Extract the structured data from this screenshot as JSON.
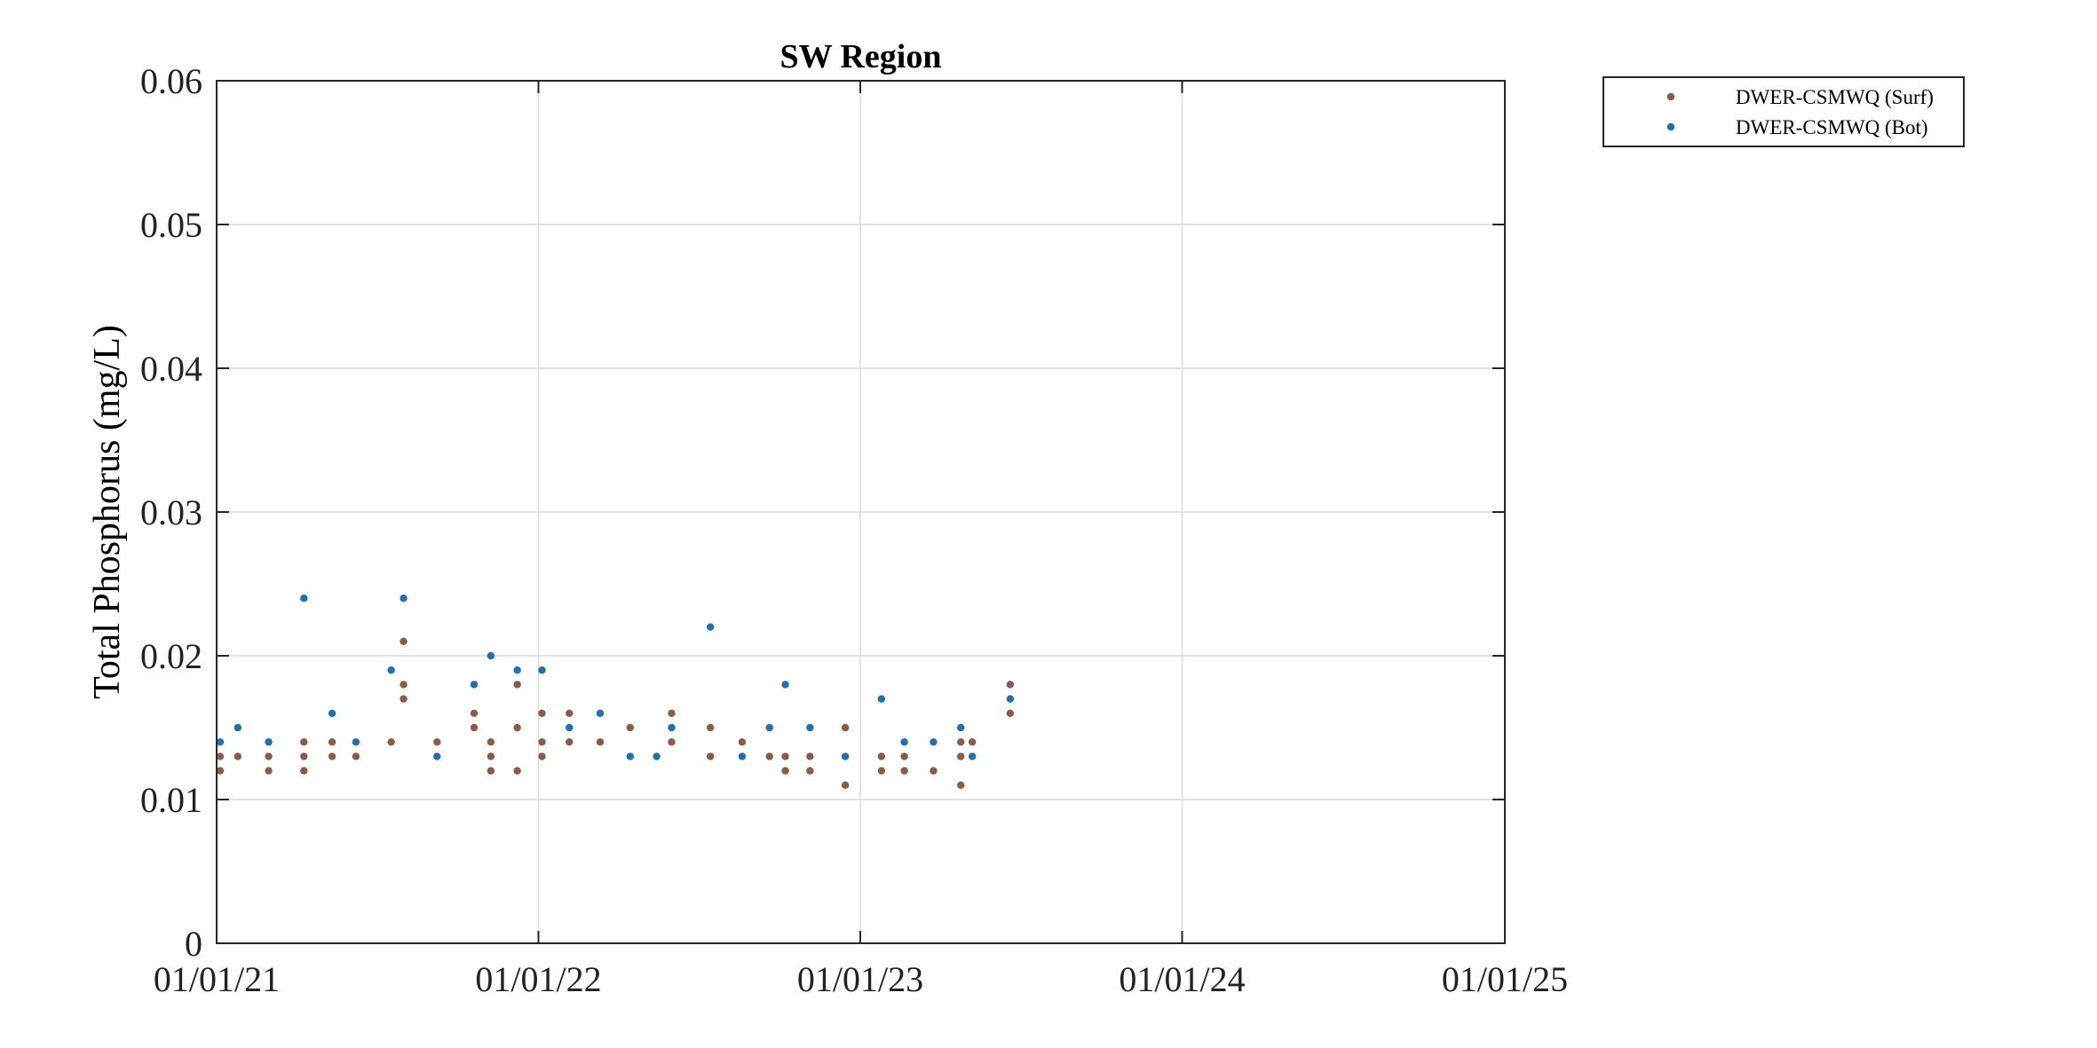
{
  "chart_data": {
    "type": "scatter",
    "title": "SW Region",
    "xlabel": "",
    "ylabel": "Total Phosphorus (mg/L)",
    "x_scale": "date",
    "xlim": [
      "2021-01-01",
      "2025-01-01"
    ],
    "ylim": [
      0,
      0.06
    ],
    "x_ticks": [
      "2021-01-01",
      "2022-01-01",
      "2023-01-01",
      "2024-01-01",
      "2025-01-01"
    ],
    "x_tick_labels": [
      "01/01/21",
      "01/01/22",
      "01/01/23",
      "01/01/24",
      "01/01/25"
    ],
    "y_ticks": [
      0,
      0.01,
      0.02,
      0.03,
      0.04,
      0.05,
      0.06
    ],
    "y_tick_labels": [
      "0",
      "0.01",
      "0.02",
      "0.03",
      "0.04",
      "0.05",
      "0.06"
    ],
    "grid": true,
    "legend_position": "outside top-right",
    "series": [
      {
        "name": "DWER-CSMWQ (Surf)",
        "color": "#8c5a46",
        "points": [
          [
            "2021-01-05",
            0.012
          ],
          [
            "2021-01-05",
            0.013
          ],
          [
            "2021-01-25",
            0.013
          ],
          [
            "2021-03-01",
            0.012
          ],
          [
            "2021-03-01",
            0.013
          ],
          [
            "2021-04-10",
            0.012
          ],
          [
            "2021-04-10",
            0.013
          ],
          [
            "2021-04-10",
            0.014
          ],
          [
            "2021-05-12",
            0.013
          ],
          [
            "2021-05-12",
            0.014
          ],
          [
            "2021-06-08",
            0.013
          ],
          [
            "2021-07-18",
            0.014
          ],
          [
            "2021-08-01",
            0.017
          ],
          [
            "2021-08-01",
            0.018
          ],
          [
            "2021-08-01",
            0.021
          ],
          [
            "2021-09-08",
            0.014
          ],
          [
            "2021-10-20",
            0.015
          ],
          [
            "2021-10-20",
            0.016
          ],
          [
            "2021-11-08",
            0.012
          ],
          [
            "2021-11-08",
            0.013
          ],
          [
            "2021-11-08",
            0.014
          ],
          [
            "2021-12-08",
            0.012
          ],
          [
            "2021-12-08",
            0.015
          ],
          [
            "2021-12-08",
            0.018
          ],
          [
            "2022-01-05",
            0.013
          ],
          [
            "2022-01-05",
            0.014
          ],
          [
            "2022-01-05",
            0.016
          ],
          [
            "2022-02-05",
            0.014
          ],
          [
            "2022-02-05",
            0.016
          ],
          [
            "2022-03-12",
            0.014
          ],
          [
            "2022-04-15",
            0.015
          ],
          [
            "2022-06-01",
            0.014
          ],
          [
            "2022-06-01",
            0.016
          ],
          [
            "2022-07-15",
            0.013
          ],
          [
            "2022-07-15",
            0.015
          ],
          [
            "2022-08-20",
            0.014
          ],
          [
            "2022-09-20",
            0.013
          ],
          [
            "2022-10-08",
            0.012
          ],
          [
            "2022-10-08",
            0.013
          ],
          [
            "2022-11-05",
            0.012
          ],
          [
            "2022-11-05",
            0.013
          ],
          [
            "2022-12-15",
            0.011
          ],
          [
            "2022-12-15",
            0.015
          ],
          [
            "2023-01-25",
            0.012
          ],
          [
            "2023-01-25",
            0.013
          ],
          [
            "2023-02-20",
            0.012
          ],
          [
            "2023-02-20",
            0.013
          ],
          [
            "2023-03-25",
            0.012
          ],
          [
            "2023-04-25",
            0.011
          ],
          [
            "2023-04-25",
            0.013
          ],
          [
            "2023-04-25",
            0.014
          ],
          [
            "2023-05-08",
            0.014
          ],
          [
            "2023-06-20",
            0.016
          ],
          [
            "2023-06-20",
            0.018
          ]
        ]
      },
      {
        "name": "DWER-CSMWQ (Bot)",
        "color": "#1f6fb5",
        "points": [
          [
            "2021-01-05",
            0.014
          ],
          [
            "2021-01-25",
            0.015
          ],
          [
            "2021-03-01",
            0.014
          ],
          [
            "2021-04-10",
            0.024
          ],
          [
            "2021-05-12",
            0.016
          ],
          [
            "2021-06-08",
            0.014
          ],
          [
            "2021-07-18",
            0.019
          ],
          [
            "2021-08-01",
            0.024
          ],
          [
            "2021-09-08",
            0.013
          ],
          [
            "2021-10-20",
            0.018
          ],
          [
            "2021-11-08",
            0.02
          ],
          [
            "2021-12-08",
            0.019
          ],
          [
            "2022-01-05",
            0.019
          ],
          [
            "2022-02-05",
            0.015
          ],
          [
            "2022-03-12",
            0.016
          ],
          [
            "2022-04-15",
            0.013
          ],
          [
            "2022-05-15",
            0.013
          ],
          [
            "2022-06-01",
            0.015
          ],
          [
            "2022-07-15",
            0.022
          ],
          [
            "2022-08-20",
            0.013
          ],
          [
            "2022-09-20",
            0.015
          ],
          [
            "2022-10-08",
            0.018
          ],
          [
            "2022-11-05",
            0.015
          ],
          [
            "2022-12-15",
            0.013
          ],
          [
            "2023-01-25",
            0.017
          ],
          [
            "2023-02-20",
            0.014
          ],
          [
            "2023-03-25",
            0.014
          ],
          [
            "2023-04-25",
            0.015
          ],
          [
            "2023-05-08",
            0.013
          ],
          [
            "2023-06-20",
            0.017
          ]
        ]
      }
    ]
  }
}
